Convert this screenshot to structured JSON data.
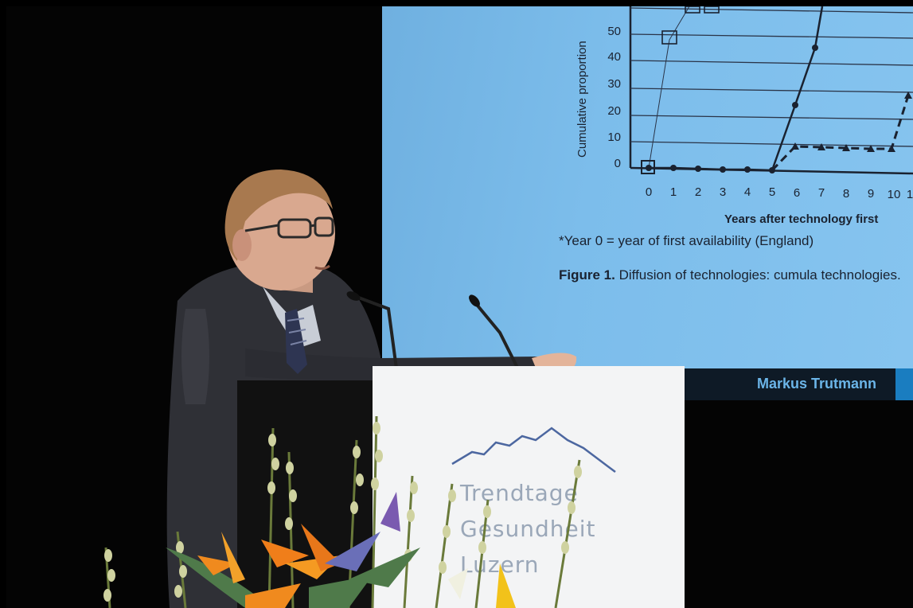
{
  "slide": {
    "y_axis_label": "Cumulative proportion",
    "y_ticks": [
      "0",
      "10",
      "20",
      "30",
      "40",
      "50"
    ],
    "x_ticks": [
      "0",
      "1",
      "2",
      "3",
      "4",
      "5",
      "6",
      "7",
      "8",
      "9",
      "10",
      "1"
    ],
    "x_axis_label": "Years after technology first",
    "footnote": "*Year 0 = year of first availability (England)",
    "caption_bold": "Figure 1.",
    "caption_rest": "Diffusion of technologies: cumula technologies."
  },
  "presenter_bar": {
    "name": "Markus Trutmann"
  },
  "podium_logo": {
    "line1": "Trendtage",
    "line2": "Gesundheit",
    "line3": "Luzern"
  },
  "colors": {
    "screen": "#7cbdeb",
    "logo_text": "#9aa7b8",
    "name_text": "#6bb5e8"
  }
}
